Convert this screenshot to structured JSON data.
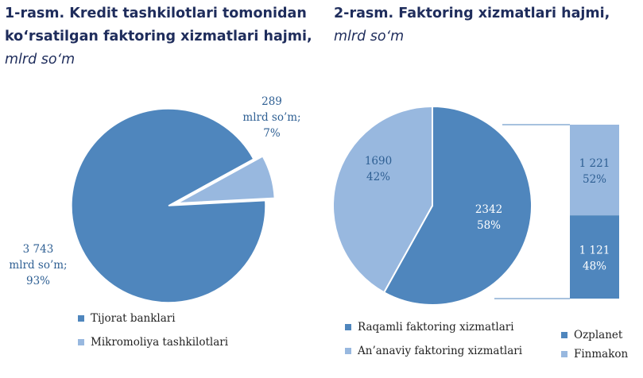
{
  "chart_data": [
    {
      "type": "pie",
      "title": "1-rasm. Kredit tashkilotlari tomonidan koʻrsatilgan faktoring xizmatlari hajmi,",
      "title_unit": "mlrd soʻm",
      "slices": [
        {
          "name": "Tijorat banklari",
          "value": 3743,
          "label_lines": [
            "3 743",
            "mlrd so’m;",
            "93%"
          ],
          "color": "#4f86bd"
        },
        {
          "name": "Mikromoliya tashkilotlari",
          "value": 289,
          "label_lines": [
            "289",
            "mlrd so’m;",
            "7%"
          ],
          "color": "#98b8df"
        }
      ],
      "legend": "bottom-left"
    },
    {
      "type": "pie",
      "title": "2-rasm. Faktoring xizmatlari hajmi,",
      "title_unit": "mlrd soʻm",
      "slices": [
        {
          "name": "Raqamli faktoring xizmatlari",
          "value": 2342,
          "label_lines": [
            "2342",
            "58%"
          ],
          "color": "#4f86bd"
        },
        {
          "name": "An’anaviy faktoring xizmatlari",
          "value": 1690,
          "label_lines": [
            "1690",
            "42%"
          ],
          "color": "#98b8df"
        }
      ],
      "breakdown": {
        "type": "stacked_bar",
        "of": "Raqamli faktoring xizmatlari",
        "segments": [
          {
            "name": "Finmakon",
            "value": 1221,
            "label_lines": [
              "1 221",
              "52%"
            ],
            "color": "#98b8df"
          },
          {
            "name": "Ozplanet",
            "value": 1121,
            "label_lines": [
              "1 121",
              "48%"
            ],
            "color": "#4f86bd"
          }
        ]
      },
      "legend": "bottom"
    }
  ]
}
